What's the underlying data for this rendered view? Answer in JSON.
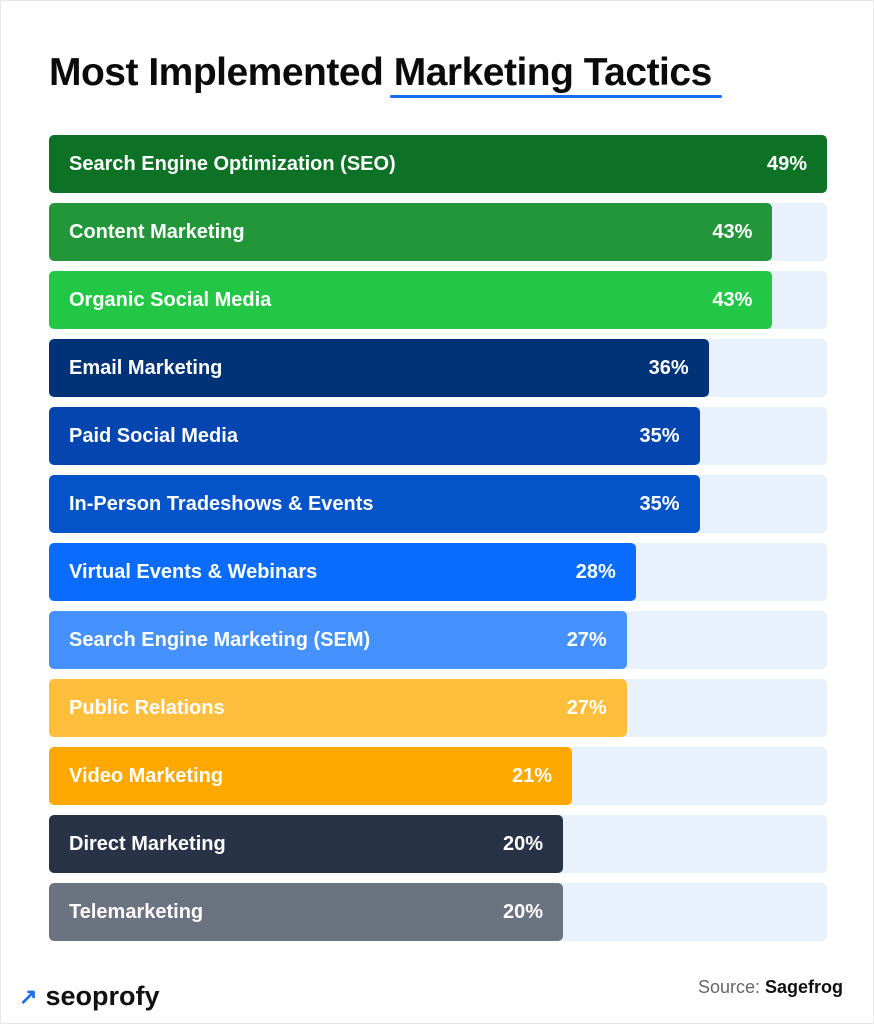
{
  "chart_data": {
    "type": "bar",
    "orientation": "horizontal",
    "title_prefix": "Most Implemented ",
    "title_highlight": "Marketing Tactics",
    "unit": "%",
    "categories": [
      "Search Engine Optimization (SEO)",
      "Content Marketing",
      "Organic Social Media",
      "Email Marketing",
      "Paid Social Media",
      "In-Person Tradeshows & Events",
      "Virtual Events & Webinars",
      "Search Engine Marketing (SEM)",
      "Public Relations",
      "Video Marketing",
      "Direct Marketing",
      "Telemarketing"
    ],
    "values": [
      49,
      43,
      43,
      36,
      35,
      35,
      28,
      27,
      27,
      21,
      20,
      20
    ],
    "value_labels": [
      "49%",
      "43%",
      "43%",
      "36%",
      "35%",
      "35%",
      "28%",
      "27%",
      "27%",
      "21%",
      "20%",
      "20%"
    ],
    "colors": [
      "#0e7226",
      "#23963a",
      "#22c845",
      "#003278",
      "#0545b0",
      "#0553c8",
      "#0a6cff",
      "#4592ff",
      "#ffbf3c",
      "#ffa800",
      "#283347",
      "#6b7280"
    ],
    "track_color": "#e9f1fd",
    "accent_color": "#1a6cf0",
    "grid": false
  },
  "footer": {
    "brand": "seoprofy",
    "brand_icon": "arrow-up-right-icon",
    "source_label": "Source: ",
    "source_name": "Sagefrog"
  }
}
